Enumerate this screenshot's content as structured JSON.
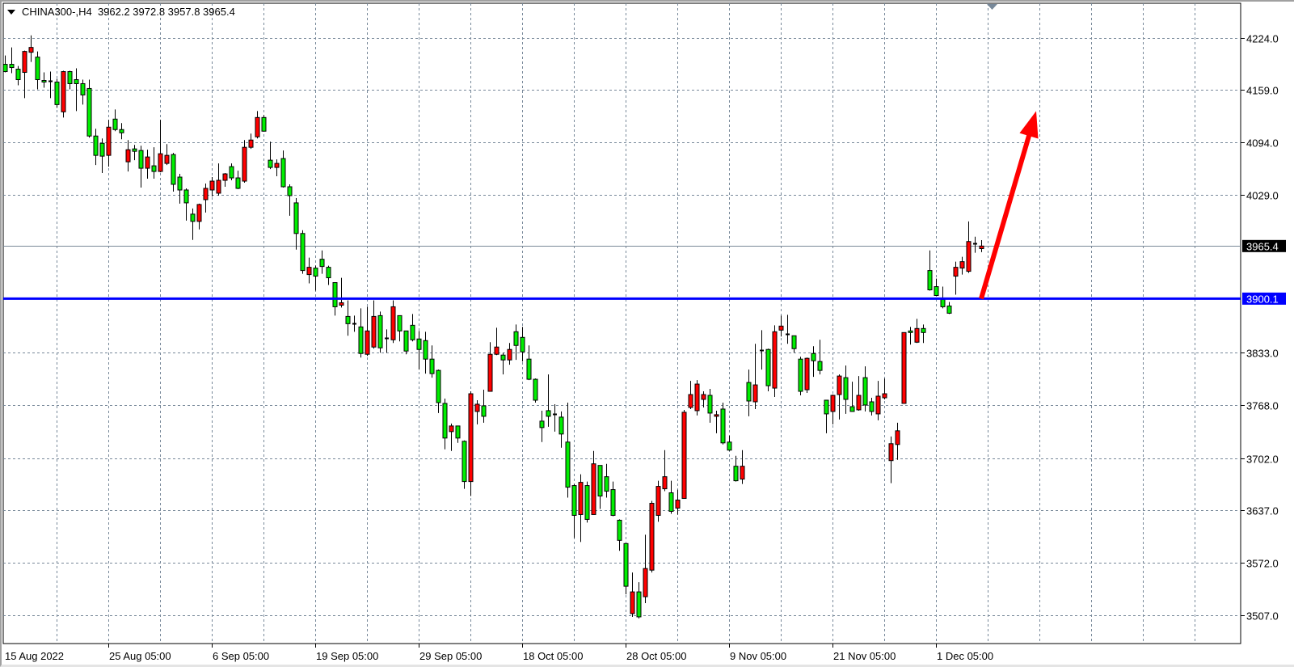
{
  "header": {
    "symbol": "CHINA300-,H4",
    "ohlc": "3962.2 3972.8 3957.8 3965.4",
    "menu_icon": "triangle-down-icon"
  },
  "chart_data": {
    "type": "candlestick",
    "title": "CHINA300-,H4",
    "bull_color": "#ff0000",
    "bear_color": "#00ee00",
    "doji_color": "#000000",
    "grid": true,
    "ylim": [
      3472,
      4270
    ],
    "y_ticks": [
      {
        "value": 4224.0,
        "label": "4224.0"
      },
      {
        "value": 4159.0,
        "label": "4159.0"
      },
      {
        "value": 4094.0,
        "label": "4094.0"
      },
      {
        "value": 4029.0,
        "label": "4029.0"
      },
      {
        "value": 3833.0,
        "label": "3833.0"
      },
      {
        "value": 3768.0,
        "label": "3768.0"
      },
      {
        "value": 3702.0,
        "label": "3702.0"
      },
      {
        "value": 3637.0,
        "label": "3637.0"
      },
      {
        "value": 3572.0,
        "label": "3572.0"
      },
      {
        "value": 3507.0,
        "label": "3507.0"
      }
    ],
    "x_ticks": [
      {
        "bar": 0,
        "label": "15 Aug 2022"
      },
      {
        "bar": 16,
        "label": "25 Aug 05:00"
      },
      {
        "bar": 32,
        "label": "6 Sep 05:00"
      },
      {
        "bar": 48,
        "label": "19 Sep 05:00"
      },
      {
        "bar": 64,
        "label": "29 Sep 05:00"
      },
      {
        "bar": 80,
        "label": "18 Oct 05:00"
      },
      {
        "bar": 96,
        "label": "28 Oct 05:00"
      },
      {
        "bar": 112,
        "label": "9 Nov 05:00"
      },
      {
        "bar": 128,
        "label": "21 Nov 05:00"
      },
      {
        "bar": 144,
        "label": "1 Dec 05:00"
      }
    ],
    "current_price": {
      "value": 3965.4,
      "label": "3965.4",
      "color": "#000000",
      "line_color": "#7a8898"
    },
    "horizontal_line": {
      "value": 3900.1,
      "label": "3900.1",
      "color": "#0000ff"
    },
    "arrow": {
      "color": "#ff0000",
      "from": {
        "bar": 151,
        "price": 3900.1
      },
      "to": {
        "bar": 159.5,
        "price": 4133
      },
      "direction": "up"
    },
    "candles_ohlc": [
      [
        4191,
        4202,
        4181,
        4182
      ],
      [
        4191,
        4212,
        4180,
        4187
      ],
      [
        4185,
        4189,
        4165,
        4172
      ],
      [
        4181,
        4208,
        4149,
        4207
      ],
      [
        4206,
        4227,
        4194,
        4212
      ],
      [
        4200,
        4207,
        4160,
        4172
      ],
      [
        4171,
        4181,
        4162,
        4169
      ],
      [
        4170,
        4182,
        4149,
        4170
      ],
      [
        4169,
        4173,
        4137,
        4141
      ],
      [
        4132,
        4183,
        4125,
        4182
      ],
      [
        4182,
        4183,
        4160,
        4167
      ],
      [
        4172,
        4186,
        4133,
        4167
      ],
      [
        4167,
        4172,
        4141,
        4153
      ],
      [
        4161,
        4172,
        4100,
        4102
      ],
      [
        4102,
        4111,
        4066,
        4078
      ],
      [
        4093,
        4099,
        4056,
        4077
      ],
      [
        4078,
        4122,
        4064,
        4113
      ],
      [
        4123,
        4135,
        4108,
        4110
      ],
      [
        4110,
        4118,
        4098,
        4106
      ],
      [
        4070,
        4097,
        4058,
        4085
      ],
      [
        4086,
        4091,
        4072,
        4083
      ],
      [
        4084,
        4090,
        4038,
        4062
      ],
      [
        4062,
        4085,
        4049,
        4076
      ],
      [
        4065,
        4088,
        4049,
        4058
      ],
      [
        4058,
        4122,
        4057,
        4080
      ],
      [
        4068,
        4092,
        4066,
        4078
      ],
      [
        4079,
        4081,
        4033,
        4042
      ],
      [
        4051,
        4055,
        4018,
        4035
      ],
      [
        4035,
        4037,
        3997,
        4019
      ],
      [
        4005,
        4012,
        3973,
        3996
      ],
      [
        3996,
        4018,
        3986,
        4017
      ],
      [
        4023,
        4043,
        4007,
        4037
      ],
      [
        4035,
        4051,
        4027,
        4046
      ],
      [
        4031,
        4068,
        4028,
        4047
      ],
      [
        4047,
        4056,
        4039,
        4055
      ],
      [
        4064,
        4068,
        4047,
        4050
      ],
      [
        4050,
        4059,
        4036,
        4037
      ],
      [
        4046,
        4097,
        4044,
        4088
      ],
      [
        4088,
        4105,
        4086,
        4097
      ],
      [
        4101,
        4133,
        4099,
        4125
      ],
      [
        4125,
        4128,
        4108,
        4108
      ],
      [
        4072,
        4095,
        4061,
        4063
      ],
      [
        4063,
        4073,
        4052,
        4068
      ],
      [
        4074,
        4084,
        4038,
        4039
      ],
      [
        4039,
        4042,
        4003,
        4028
      ],
      [
        4019,
        4025,
        3961,
        3981
      ],
      [
        3981,
        3985,
        3931,
        3935
      ],
      [
        3930,
        3951,
        3919,
        3939
      ],
      [
        3938,
        3941,
        3910,
        3928
      ],
      [
        3949,
        3960,
        3931,
        3940
      ],
      [
        3939,
        3941,
        3917,
        3926
      ],
      [
        3920,
        3920,
        3879,
        3890
      ],
      [
        3892,
        3926,
        3889,
        3895
      ],
      [
        3878,
        3898,
        3854,
        3869
      ],
      [
        3869,
        3879,
        3859,
        3869
      ],
      [
        3865,
        3888,
        3827,
        3832
      ],
      [
        3831,
        3890,
        3829,
        3860
      ],
      [
        3840,
        3898,
        3838,
        3878
      ],
      [
        3879,
        3884,
        3833,
        3839
      ],
      [
        3851,
        3862,
        3833,
        3851
      ],
      [
        3849,
        3898,
        3845,
        3890
      ],
      [
        3879,
        3879,
        3847,
        3860
      ],
      [
        3860,
        3860,
        3831,
        3835
      ],
      [
        3867,
        3881,
        3847,
        3849
      ],
      [
        3850,
        3860,
        3812,
        3837
      ],
      [
        3848,
        3859,
        3807,
        3825
      ],
      [
        3825,
        3842,
        3802,
        3807
      ],
      [
        3811,
        3812,
        3758,
        3771
      ],
      [
        3770,
        3776,
        3713,
        3727
      ],
      [
        3735,
        3745,
        3711,
        3742
      ],
      [
        3742,
        3742,
        3721,
        3727
      ],
      [
        3723,
        3724,
        3664,
        3673
      ],
      [
        3673,
        3785,
        3655,
        3782
      ],
      [
        3760,
        3774,
        3744,
        3769
      ],
      [
        3767,
        3787,
        3746,
        3754
      ],
      [
        3785,
        3846,
        3785,
        3831
      ],
      [
        3831,
        3864,
        3830,
        3840
      ],
      [
        3830,
        3833,
        3806,
        3824
      ],
      [
        3824,
        3845,
        3818,
        3837
      ],
      [
        3859,
        3868,
        3824,
        3842
      ],
      [
        3852,
        3865,
        3822,
        3834
      ],
      [
        3825,
        3842,
        3799,
        3800
      ],
      [
        3800,
        3801,
        3771,
        3774
      ],
      [
        3748,
        3761,
        3722,
        3740
      ],
      [
        3761,
        3806,
        3741,
        3754
      ],
      [
        3757,
        3769,
        3735,
        3757
      ],
      [
        3753,
        3760,
        3715,
        3732
      ],
      [
        3722,
        3771,
        3653,
        3666
      ],
      [
        3668,
        3670,
        3603,
        3631
      ],
      [
        3632,
        3682,
        3598,
        3672
      ],
      [
        3668,
        3673,
        3622,
        3626
      ],
      [
        3632,
        3711,
        3632,
        3695
      ],
      [
        3693,
        3693,
        3639,
        3655
      ],
      [
        3679,
        3695,
        3653,
        3661
      ],
      [
        3663,
        3673,
        3630,
        3631
      ],
      [
        3625,
        3626,
        3587,
        3600
      ],
      [
        3596,
        3596,
        3533,
        3543
      ],
      [
        3509,
        3560,
        3505,
        3536
      ],
      [
        3536,
        3548,
        3503,
        3505
      ],
      [
        3530,
        3607,
        3522,
        3565
      ],
      [
        3563,
        3649,
        3560,
        3646
      ],
      [
        3631,
        3674,
        3623,
        3667
      ],
      [
        3664,
        3712,
        3661,
        3679
      ],
      [
        3659,
        3674,
        3633,
        3636
      ],
      [
        3640,
        3663,
        3632,
        3650
      ],
      [
        3652,
        3762,
        3652,
        3759
      ],
      [
        3765,
        3798,
        3763,
        3781
      ],
      [
        3761,
        3799,
        3755,
        3794
      ],
      [
        3775,
        3785,
        3765,
        3781
      ],
      [
        3780,
        3788,
        3746,
        3758
      ],
      [
        3754,
        3761,
        3733,
        3756
      ],
      [
        3763,
        3771,
        3719,
        3721
      ],
      [
        3722,
        3730,
        3711,
        3712
      ],
      [
        3692,
        3705,
        3673,
        3674
      ],
      [
        3676,
        3712,
        3670,
        3692
      ],
      [
        3796,
        3812,
        3754,
        3773
      ],
      [
        3772,
        3844,
        3763,
        3793
      ],
      [
        3836,
        3861,
        3812,
        3836
      ],
      [
        3837,
        3838,
        3785,
        3792
      ],
      [
        3789,
        3867,
        3778,
        3859
      ],
      [
        3861,
        3879,
        3853,
        3866
      ],
      [
        3856,
        3880,
        3844,
        3856
      ],
      [
        3854,
        3854,
        3833,
        3838
      ],
      [
        3825,
        3828,
        3780,
        3785
      ],
      [
        3787,
        3827,
        3783,
        3826
      ],
      [
        3832,
        3841,
        3803,
        3823
      ],
      [
        3822,
        3849,
        3806,
        3811
      ],
      [
        3774,
        3774,
        3733,
        3757
      ],
      [
        3760,
        3781,
        3744,
        3780
      ],
      [
        3781,
        3806,
        3750,
        3804
      ],
      [
        3802,
        3817,
        3757,
        3775
      ],
      [
        3766,
        3797,
        3760,
        3760
      ],
      [
        3762,
        3804,
        3761,
        3780
      ],
      [
        3802,
        3816,
        3760,
        3768
      ],
      [
        3772,
        3777,
        3755,
        3760
      ],
      [
        3757,
        3798,
        3749,
        3779
      ],
      [
        3777,
        3801,
        3775,
        3782
      ],
      [
        3699,
        3729,
        3671,
        3720
      ],
      [
        3719,
        3746,
        3700,
        3736
      ],
      [
        3770,
        3858,
        3770,
        3858
      ],
      [
        3860,
        3865,
        3843,
        3858
      ],
      [
        3846,
        3875,
        3845,
        3863
      ],
      [
        3863,
        3868,
        3845,
        3858
      ],
      [
        3935,
        3960,
        3910,
        3911
      ],
      [
        3915,
        3925,
        3904,
        3904
      ],
      [
        3899,
        3915,
        3888,
        3890
      ],
      [
        3891,
        3896,
        3881,
        3882
      ],
      [
        3928,
        3946,
        3905,
        3939
      ],
      [
        3938,
        3952,
        3930,
        3946
      ],
      [
        3934,
        3996,
        3932,
        3971
      ],
      [
        3969,
        3977,
        3957,
        3969
      ],
      [
        3962.2,
        3972.8,
        3957.8,
        3965.4
      ]
    ]
  }
}
